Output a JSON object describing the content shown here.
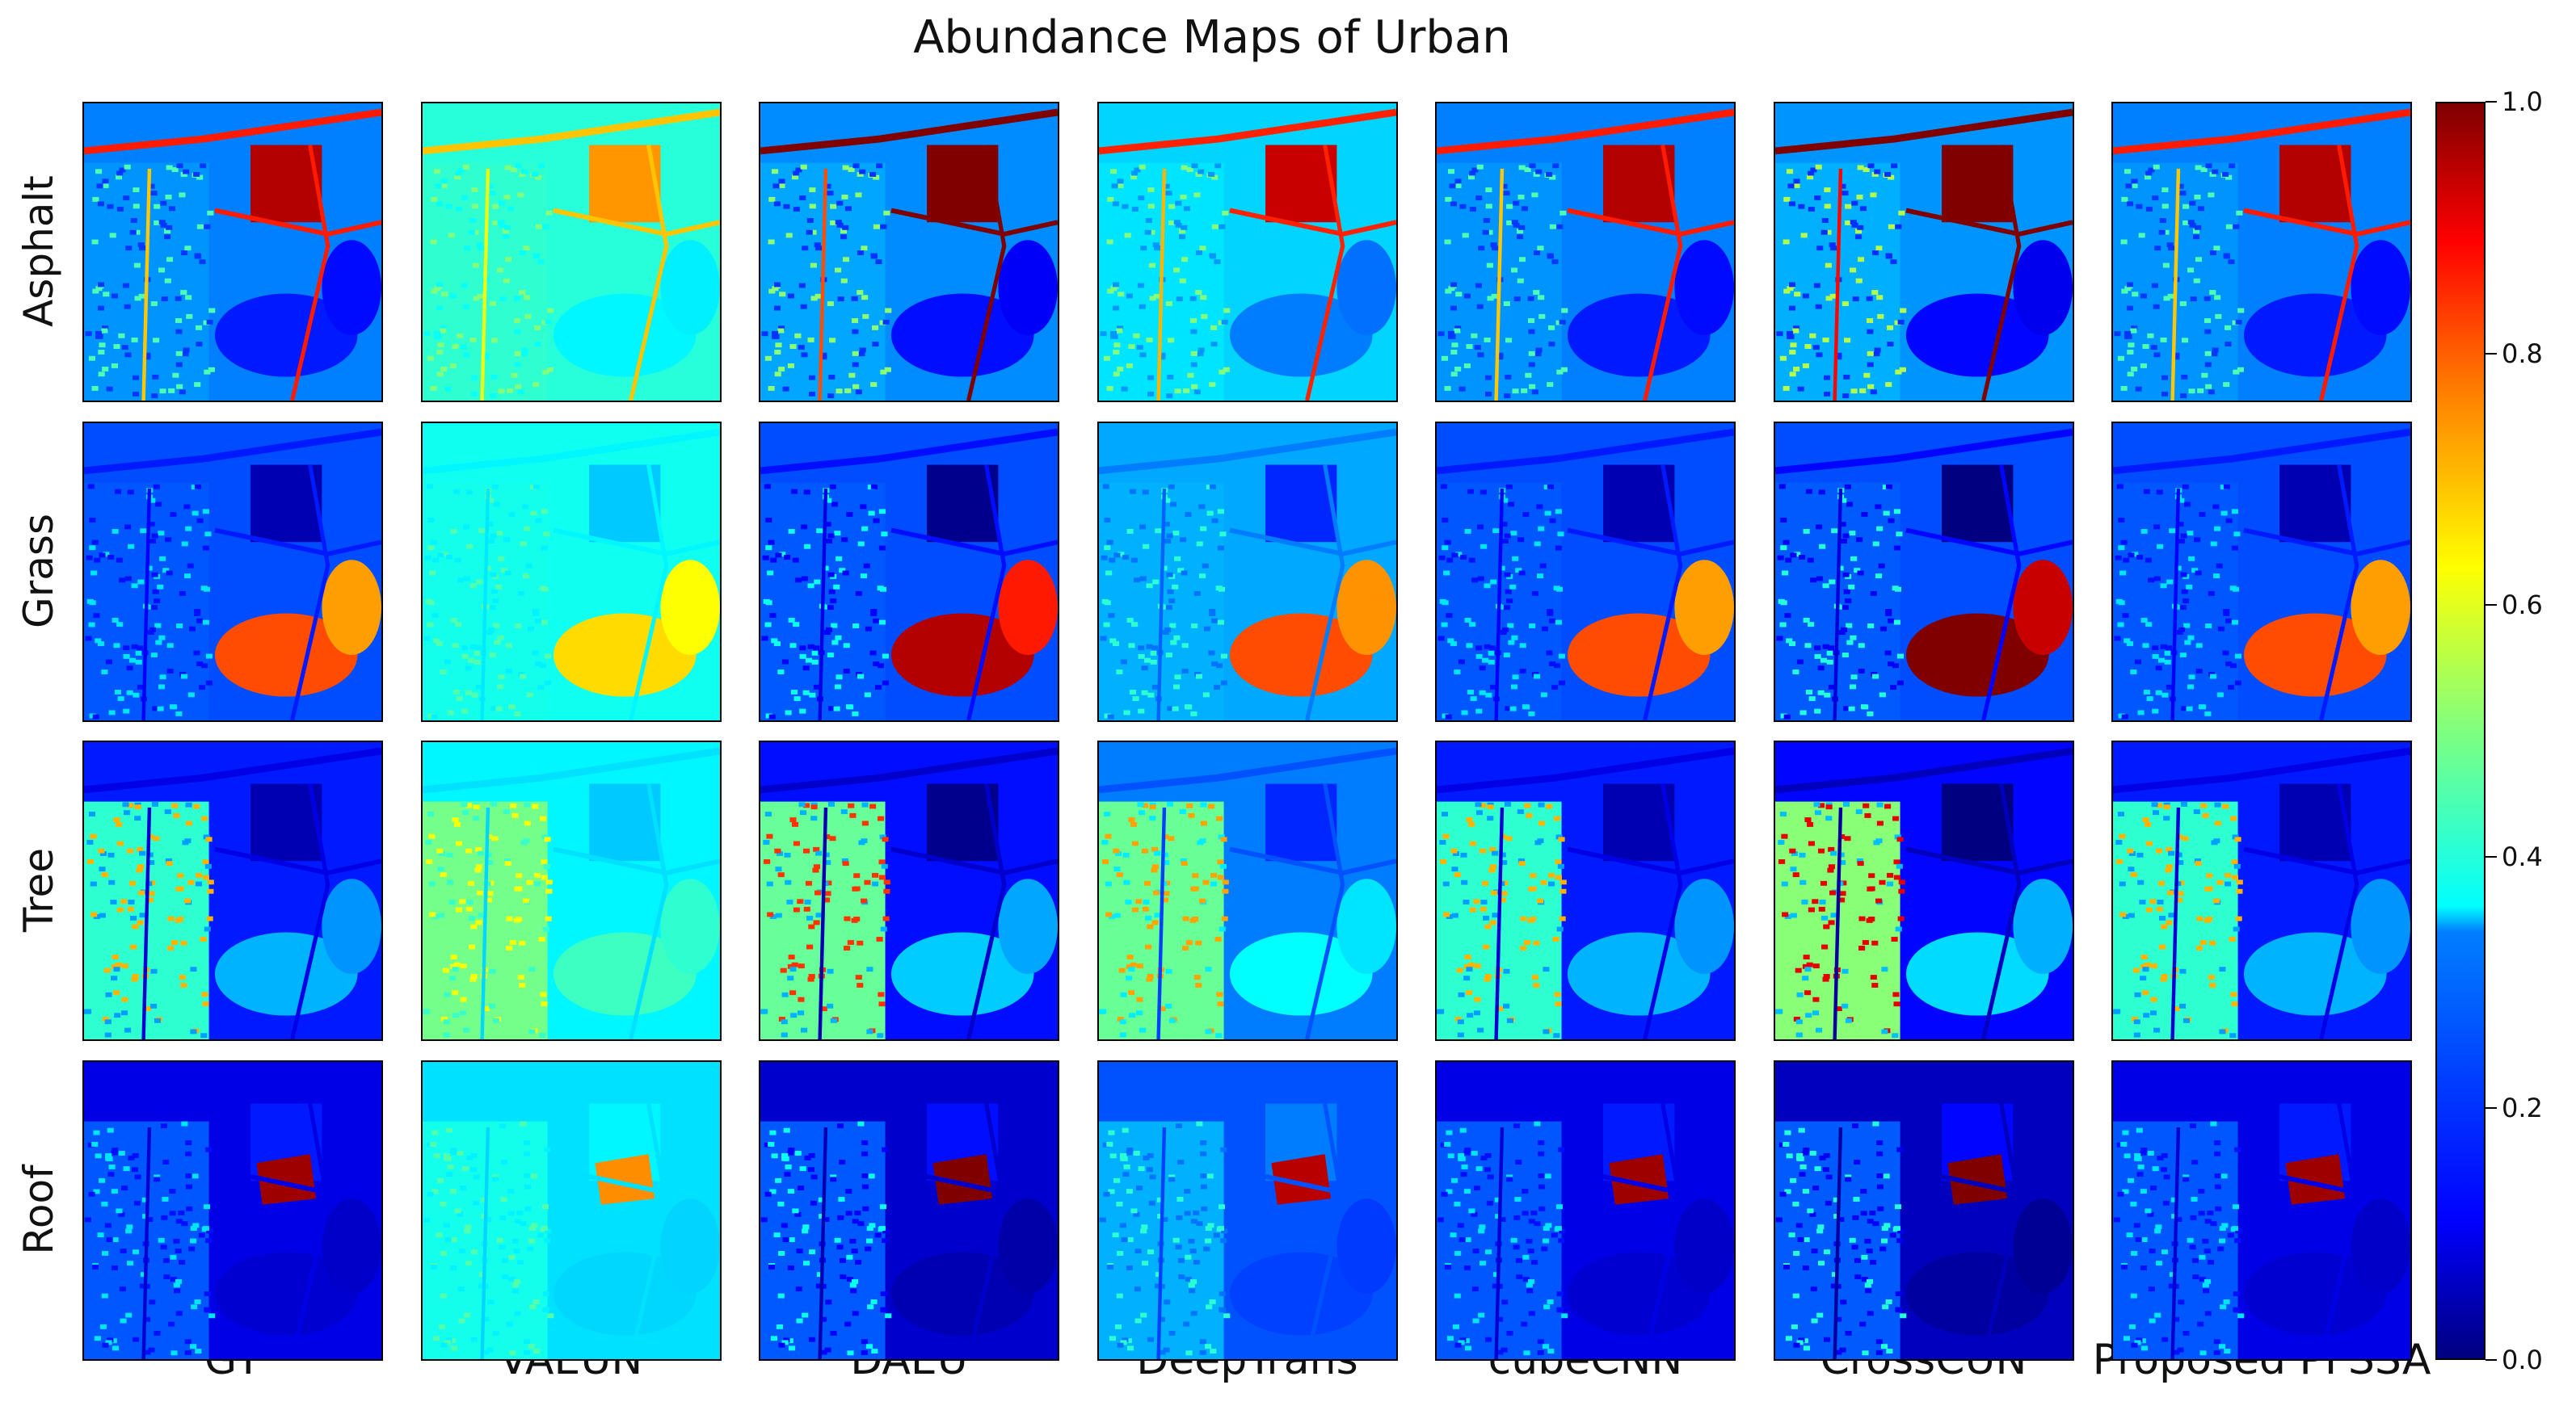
{
  "chart_data": {
    "type": "heatmap",
    "title": "Abundance Maps of Urban",
    "rows": [
      "Asphalt",
      "Grass",
      "Tree",
      "Roof"
    ],
    "columns": [
      "GT",
      "VAEUN",
      "DAEU",
      "DeepTrans",
      "cubeCNN",
      "CrossCUN",
      "Proposed PFSSA"
    ],
    "colorbar": {
      "colormap": "jet",
      "range": [
        0.0,
        1.0
      ],
      "ticks": [
        "0.0",
        "0.2",
        "0.4",
        "0.6",
        "0.8",
        "1.0"
      ]
    },
    "map_levels": {
      "Asphalt": {
        "base": 0.25,
        "lot": 0.95,
        "roads": 0.85,
        "veg": 0.15,
        "residential": 0.45
      },
      "Grass": {
        "base": 0.2,
        "lot": 0.05,
        "roads": 0.15,
        "veg": 0.8,
        "residential": 0.35
      },
      "Tree": {
        "base": 0.15,
        "lot": 0.05,
        "roads": 0.1,
        "veg": 0.3,
        "residential": 0.7
      },
      "Roof": {
        "base": 0.1,
        "lot": 0.15,
        "roads": 0.1,
        "veg": 0.08,
        "residential": 0.35,
        "roof": 0.97
      }
    },
    "method_style": {
      "GT": {
        "contrast": 1.0,
        "offset": 0.0
      },
      "VAEUN": {
        "contrast": 0.45,
        "offset": 0.3
      },
      "DAEU": {
        "contrast": 1.25,
        "offset": -0.05
      },
      "DeepTrans": {
        "contrast": 0.85,
        "offset": 0.12
      },
      "cubeCNN": {
        "contrast": 1.0,
        "offset": 0.0
      },
      "CrossCUN": {
        "contrast": 1.4,
        "offset": -0.08
      },
      "Proposed PFSSA": {
        "contrast": 1.0,
        "offset": 0.0
      }
    }
  }
}
